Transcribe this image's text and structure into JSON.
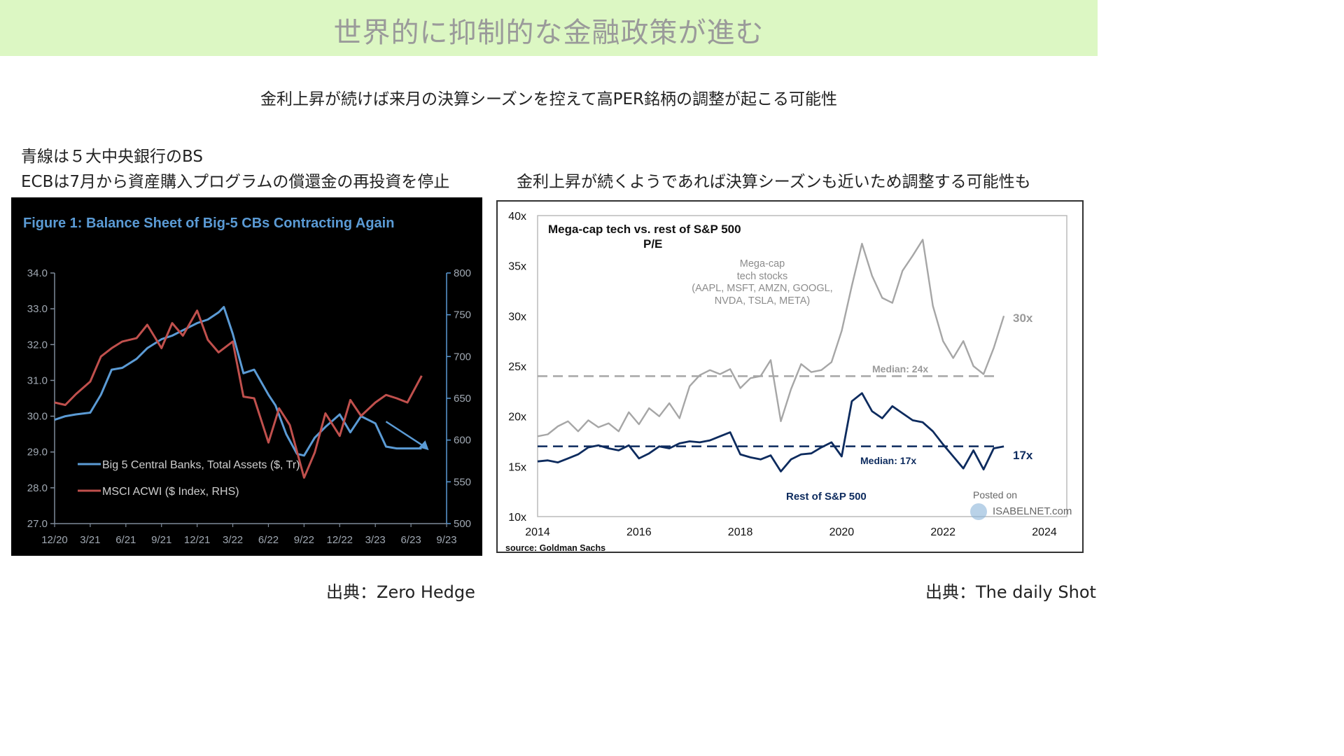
{
  "page": {
    "title": "世界的に抑制的な金融政策が進む",
    "subtitle": "金利上昇が続けば来月の決算シーズンを控えて高PER銘柄の調整が起こる可能性",
    "left_note_1": "青線は５大中央銀行のBS",
    "left_note_2": "ECBは7月から資産購入プログラムの償還金の再投資を停止",
    "right_note": "金利上昇が続くようであれば決算シーズンも近いため調整する可能性も",
    "left_source": "出典：Zero Hedge",
    "right_source": "出典：The daily Shot"
  },
  "colors": {
    "banner": "#dcf7c3",
    "cb_line": "#5b9bd5",
    "msci_line": "#c0504d",
    "megacap_line": "#a6a6a6",
    "rest_line": "#0d2b5e"
  },
  "chart_data": [
    {
      "type": "line",
      "title": "Figure 1: Balance Sheet of Big-5 CBs Contracting Again",
      "categories": [
        "12/20",
        "3/21",
        "6/21",
        "9/21",
        "12/21",
        "3/22",
        "6/22",
        "9/22",
        "12/22",
        "3/23",
        "6/23",
        "9/23"
      ],
      "y_ticks": [
        "34.0",
        "33.0",
        "32.0",
        "31.0",
        "30.0",
        "29.0",
        "28.0",
        "27.0"
      ],
      "y2_ticks": [
        "800",
        "750",
        "700",
        "650",
        "600",
        "550",
        "500"
      ],
      "ylim": [
        27,
        34
      ],
      "y2lim": [
        500,
        800
      ],
      "legend": [
        "Big 5 Central Banks, Total Assets ($, Tr)",
        "MSCI ACWI ($ Index, RHS)"
      ],
      "legend_position": "bottom-left",
      "series": [
        {
          "name": "Big 5 Central Banks, Total Assets ($, Tr)",
          "axis": "left",
          "x": [
            0,
            0.3,
            0.6,
            1.0,
            1.3,
            1.6,
            1.9,
            2.3,
            2.6,
            3.0,
            3.3,
            3.6,
            4.0,
            4.3,
            4.6,
            4.75,
            5.0,
            5.3,
            5.6,
            6.0,
            6.2,
            6.5,
            6.8,
            7.0,
            7.3,
            7.6,
            8.0,
            8.3,
            8.6,
            9.0,
            9.3,
            9.6,
            9.9,
            10.3
          ],
          "y": [
            29.9,
            30.0,
            30.05,
            30.1,
            30.6,
            31.3,
            31.35,
            31.6,
            31.9,
            32.15,
            32.25,
            32.4,
            32.6,
            32.7,
            32.9,
            33.05,
            32.3,
            31.2,
            31.3,
            30.6,
            30.3,
            29.5,
            28.95,
            28.9,
            29.4,
            29.7,
            30.05,
            29.55,
            30.0,
            29.8,
            29.15,
            29.1,
            29.1,
            29.1
          ]
        },
        {
          "name": "MSCI ACWI ($ Index, RHS)",
          "axis": "right",
          "x": [
            0,
            0.3,
            0.6,
            1.0,
            1.3,
            1.6,
            1.9,
            2.3,
            2.6,
            3.0,
            3.3,
            3.6,
            4.0,
            4.3,
            4.6,
            5.0,
            5.3,
            5.6,
            6.0,
            6.3,
            6.6,
            7.0,
            7.3,
            7.6,
            8.0,
            8.3,
            8.6,
            9.0,
            9.3,
            9.6,
            9.9,
            10.3
          ],
          "y": [
            645,
            642,
            655,
            670,
            700,
            710,
            718,
            722,
            738,
            710,
            740,
            725,
            755,
            720,
            705,
            718,
            652,
            650,
            597,
            638,
            618,
            555,
            585,
            632,
            605,
            648,
            629,
            645,
            654,
            650,
            645,
            677
          ]
        }
      ],
      "annotation": {
        "type": "arrow",
        "from": {
          "x": 9.3,
          "y": 29.85
        },
        "to": {
          "x": 10.5,
          "y": 29.05
        }
      }
    },
    {
      "type": "line",
      "title": "Mega-cap tech vs. rest of S&P 500 P/E",
      "x_ticks": [
        "2014",
        "2016",
        "2018",
        "2020",
        "2022",
        "2024"
      ],
      "y_ticks": [
        "40x",
        "35x",
        "30x",
        "25x",
        "20x",
        "15x",
        "10x"
      ],
      "xlim": [
        2014,
        2024
      ],
      "ylim": [
        10,
        40
      ],
      "annotations": [
        "Mega-cap tech stocks (AAPL, MSFT, AMZN, GOOGL, NVDA, TSLA, META)",
        "Median: 24x",
        "Median: 17x",
        "Rest of S&P 500",
        "30x",
        "17x",
        "Posted on",
        "ISABELNET.com"
      ],
      "source": "source: Goldman Sachs",
      "medians": [
        24,
        17
      ],
      "series": [
        {
          "label": "Mega-cap tech stocks",
          "x": [
            2014.0,
            2014.2,
            2014.4,
            2014.6,
            2014.8,
            2015.0,
            2015.2,
            2015.4,
            2015.6,
            2015.8,
            2016.0,
            2016.2,
            2016.4,
            2016.6,
            2016.8,
            2017.0,
            2017.2,
            2017.4,
            2017.6,
            2017.8,
            2018.0,
            2018.2,
            2018.4,
            2018.6,
            2018.8,
            2019.0,
            2019.2,
            2019.4,
            2019.6,
            2019.8,
            2020.0,
            2020.2,
            2020.4,
            2020.6,
            2020.8,
            2021.0,
            2021.2,
            2021.4,
            2021.6,
            2021.8,
            2022.0,
            2022.2,
            2022.4,
            2022.6,
            2022.8,
            2023.0,
            2023.2
          ],
          "y": [
            18,
            18.2,
            19,
            19.5,
            18.5,
            19.6,
            18.9,
            19.3,
            18.5,
            20.4,
            19.2,
            20.8,
            20.0,
            21.3,
            19.8,
            23.0,
            24.1,
            24.6,
            24.2,
            24.7,
            22.8,
            23.8,
            24.0,
            25.6,
            19.5,
            22.7,
            25.2,
            24.4,
            24.6,
            25.4,
            28.5,
            33.0,
            37.2,
            34.0,
            31.8,
            31.3,
            34.5,
            36.0,
            37.6,
            31.0,
            27.5,
            25.8,
            27.5,
            25.0,
            24.2,
            26.8,
            30.0
          ]
        },
        {
          "label": "Rest of S&P 500",
          "x": [
            2014.0,
            2014.2,
            2014.4,
            2014.6,
            2014.8,
            2015.0,
            2015.2,
            2015.4,
            2015.6,
            2015.8,
            2016.0,
            2016.2,
            2016.4,
            2016.6,
            2016.8,
            2017.0,
            2017.2,
            2017.4,
            2017.6,
            2017.8,
            2018.0,
            2018.2,
            2018.4,
            2018.6,
            2018.8,
            2019.0,
            2019.2,
            2019.4,
            2019.6,
            2019.8,
            2020.0,
            2020.2,
            2020.4,
            2020.6,
            2020.8,
            2021.0,
            2021.2,
            2021.4,
            2021.6,
            2021.8,
            2022.0,
            2022.2,
            2022.4,
            2022.6,
            2022.8,
            2023.0,
            2023.2
          ],
          "y": [
            15.5,
            15.6,
            15.4,
            15.8,
            16.2,
            16.9,
            17.1,
            16.8,
            16.6,
            17.1,
            15.8,
            16.3,
            17.0,
            16.8,
            17.3,
            17.5,
            17.4,
            17.6,
            18.0,
            18.4,
            16.2,
            15.9,
            15.7,
            16.1,
            14.5,
            15.7,
            16.2,
            16.3,
            16.9,
            17.4,
            16.0,
            21.5,
            22.3,
            20.5,
            19.8,
            21.0,
            20.3,
            19.6,
            19.4,
            18.5,
            17.2,
            16.0,
            14.8,
            16.6,
            14.7,
            16.8,
            17.0
          ]
        }
      ]
    }
  ]
}
